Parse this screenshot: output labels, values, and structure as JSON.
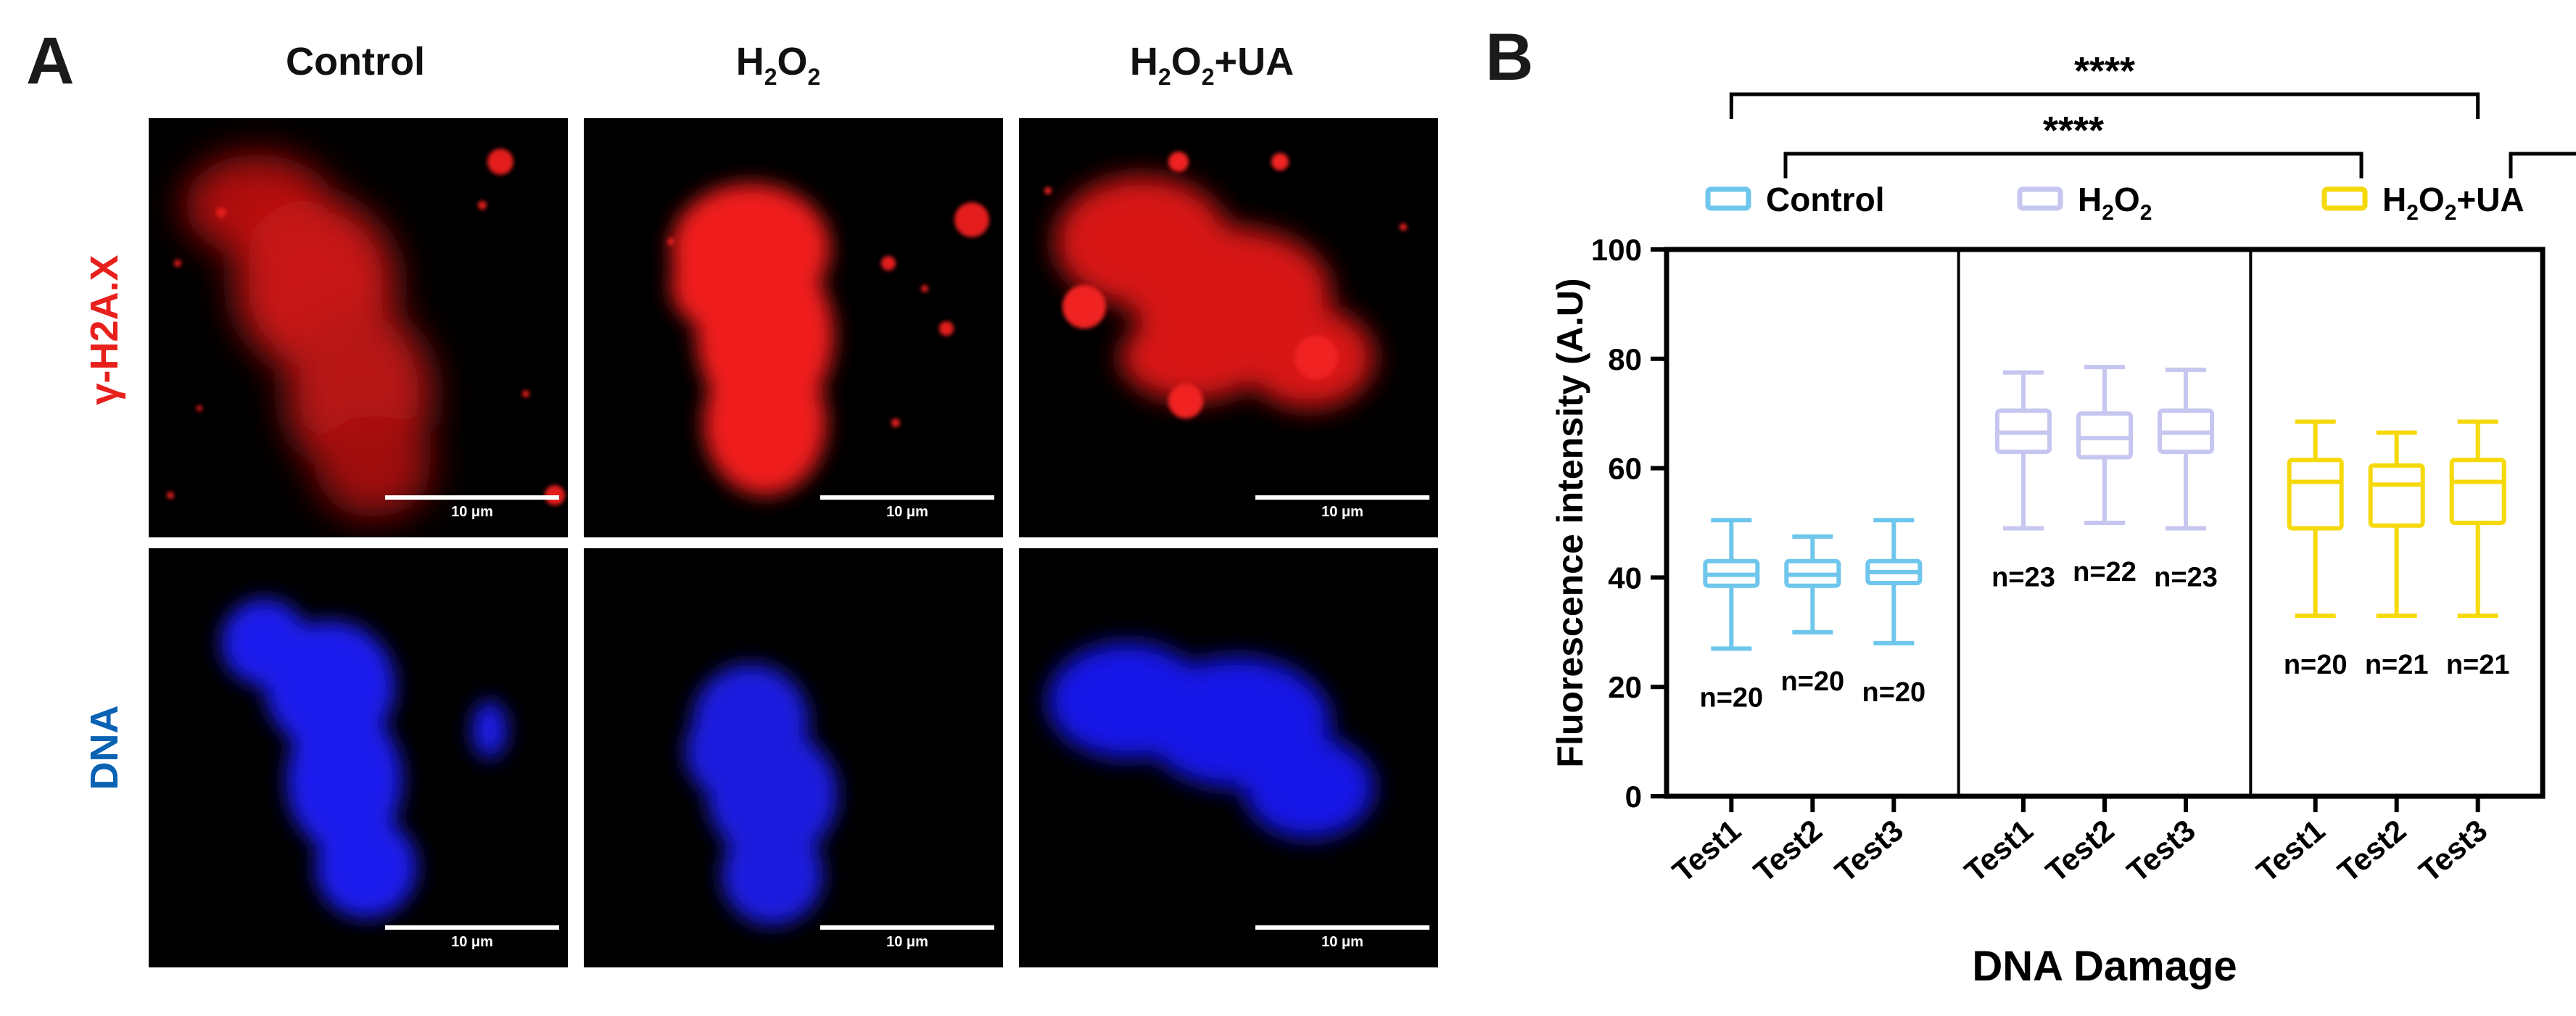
{
  "panelA": {
    "letter": "A",
    "columns": [
      {
        "title": "Control",
        "title_sub": "",
        "title_tail": ""
      },
      {
        "title": "H",
        "title_sub": "2",
        "title_tail": "O",
        "title_sub2": "2",
        "title_tail2": ""
      },
      {
        "title": "H",
        "title_sub": "2",
        "title_tail": "O",
        "title_sub2": "2",
        "title_tail2": "+UA"
      }
    ],
    "rows": [
      {
        "label": "γ-H2A.X",
        "color": "#e8201c"
      },
      {
        "label": "DNA",
        "color": "#0a62b3"
      }
    ],
    "scale_label": "10 μm"
  },
  "chart_data": {
    "type": "box",
    "panel_letter": "B",
    "xlabel": "DNA Damage",
    "ylabel": "Fluorescence intensity (A.U)",
    "ylim": [
      0,
      100
    ],
    "yticks": [
      0,
      20,
      40,
      60,
      80,
      100
    ],
    "legend_placement": "top",
    "groups": [
      {
        "legend": "Control",
        "legend_sub": "",
        "legend_tail": "",
        "legend_sub2": "",
        "legend_tail2": "",
        "color": "#6ec6ec",
        "boxes": [
          {
            "label": "Test1",
            "min": 27,
            "q1": 38.5,
            "median": 40.5,
            "q3": 43,
            "max": 50.5,
            "n": "n=20"
          },
          {
            "label": "Test2",
            "min": 30,
            "q1": 38.5,
            "median": 40.5,
            "q3": 43,
            "max": 47.5,
            "n": "n=20"
          },
          {
            "label": "Test3",
            "min": 28,
            "q1": 39,
            "median": 41,
            "q3": 43,
            "max": 50.5,
            "n": "n=20"
          }
        ]
      },
      {
        "legend": "H",
        "legend_sub": "2",
        "legend_tail": "O",
        "legend_sub2": "2",
        "legend_tail2": "",
        "color": "#c6c6f0",
        "boxes": [
          {
            "label": "Test1",
            "min": 49,
            "q1": 63,
            "median": 66.5,
            "q3": 70.5,
            "max": 77.5,
            "n": "n=23"
          },
          {
            "label": "Test2",
            "min": 50,
            "q1": 62,
            "median": 65.5,
            "q3": 70,
            "max": 78.5,
            "n": "n=22"
          },
          {
            "label": "Test3",
            "min": 49,
            "q1": 63,
            "median": 66.5,
            "q3": 70.5,
            "max": 78,
            "n": "n=23"
          }
        ]
      },
      {
        "legend": "H",
        "legend_sub": "2",
        "legend_tail": "O",
        "legend_sub2": "2",
        "legend_tail2": "+UA",
        "color": "#f5d90a",
        "boxes": [
          {
            "label": "Test1",
            "min": 33,
            "q1": 49,
            "median": 57.5,
            "q3": 61.5,
            "max": 68.5,
            "n": "n=20"
          },
          {
            "label": "Test2",
            "min": 33,
            "q1": 49.5,
            "median": 57,
            "q3": 60.5,
            "max": 66.5,
            "n": "n=21"
          },
          {
            "label": "Test3",
            "min": 33,
            "q1": 50,
            "median": 57.5,
            "q3": 61.5,
            "max": 68.5,
            "n": "n=21"
          }
        ]
      }
    ],
    "significance": [
      {
        "label": "****",
        "from_group": 0,
        "to_group": 2,
        "level": 2
      },
      {
        "label": "****",
        "from_group": 0,
        "to_group": 1,
        "level": 1
      },
      {
        "label": "***",
        "from_group": 1,
        "to_group": 2,
        "level": 1
      }
    ]
  }
}
